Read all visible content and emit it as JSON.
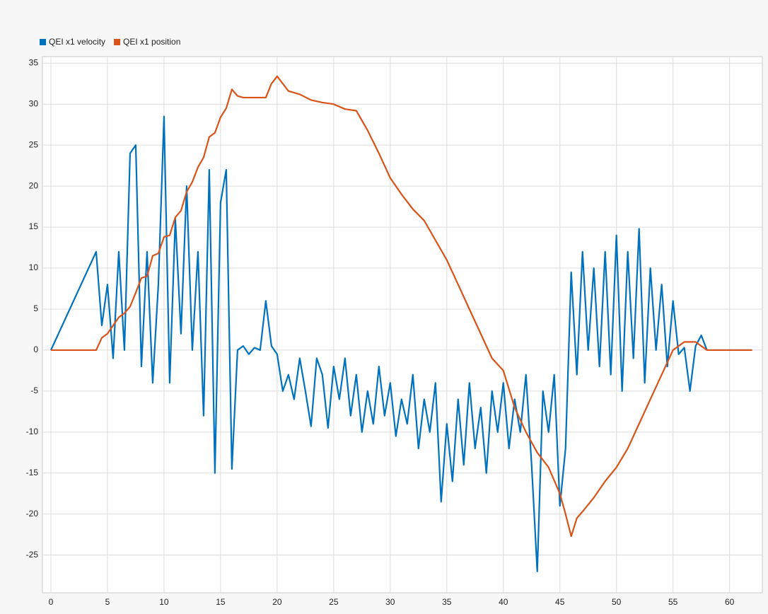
{
  "chart_data": {
    "type": "line",
    "xlim": [
      -0.75,
      62.9
    ],
    "xticks": [
      0,
      5,
      10,
      15,
      20,
      25,
      30,
      35,
      40,
      45,
      50,
      55,
      60
    ],
    "ylim": [
      -29.6,
      35.8
    ],
    "yticks": [
      -25,
      -20,
      -15,
      -10,
      -5,
      0,
      5,
      10,
      15,
      20,
      25,
      30,
      35
    ],
    "grid": true,
    "legend": "top-left",
    "series": [
      {
        "name": "QEI x1 velocity",
        "color": "#0072bd",
        "x": [
          0,
          4,
          4.5,
          5,
          5.5,
          6,
          6.5,
          7,
          7.5,
          8,
          8.5,
          9,
          9.5,
          10,
          10.5,
          11,
          11.5,
          12,
          12.5,
          13,
          13.5,
          14,
          14.5,
          15,
          15.5,
          16,
          16.5,
          17,
          17.5,
          18,
          18.5,
          19,
          19.5,
          20,
          20.5,
          21,
          21.5,
          22,
          22.5,
          23,
          23.5,
          24,
          24.5,
          25,
          25.5,
          26,
          26.5,
          27,
          27.5,
          28,
          28.5,
          29,
          29.5,
          30,
          30.5,
          31,
          31.5,
          32,
          32.5,
          33,
          33.5,
          34,
          34.5,
          35,
          35.5,
          36,
          36.5,
          37,
          37.5,
          38,
          38.5,
          39,
          39.5,
          40,
          40.5,
          41,
          41.5,
          42,
          42.5,
          43,
          43.5,
          44,
          44.5,
          45,
          45.5,
          46,
          46.5,
          47,
          47.5,
          48,
          48.5,
          49,
          49.5,
          50,
          50.5,
          51,
          51.5,
          52,
          52.5,
          53,
          53.5,
          54,
          54.5,
          55,
          55.5,
          56,
          56.5,
          57,
          57.5,
          58,
          62
        ],
        "values": [
          0,
          12,
          3,
          8,
          -1,
          12,
          0,
          24,
          25,
          -2,
          12,
          -4,
          8,
          28.5,
          -4,
          16,
          2,
          20,
          0,
          12,
          -8,
          22,
          -15,
          18,
          22,
          -14.5,
          0,
          0.5,
          -0.5,
          0.3,
          0,
          6,
          0.5,
          -0.5,
          -5,
          -3,
          -6,
          -1,
          -5,
          -9.3,
          -1,
          -3,
          -9.5,
          -2,
          -6,
          -1,
          -8,
          -3,
          -10,
          -5,
          -9,
          -2,
          -8,
          -4,
          -10.5,
          -6,
          -9,
          -3,
          -12,
          -6,
          -10,
          -4,
          -18.5,
          -9,
          -16,
          -6,
          -14,
          -4,
          -12,
          -7,
          -15,
          -5,
          -10,
          -4,
          -12,
          -6,
          -10,
          -3,
          -14,
          -27,
          -5,
          -10,
          -3,
          -19,
          -12,
          9.5,
          -3,
          12,
          0,
          10,
          -2,
          12,
          -3,
          14,
          -5,
          12,
          -1,
          14.8,
          -4,
          10,
          0,
          8,
          -2,
          6,
          -0.5,
          0.3,
          -5,
          0.5,
          1.8,
          0,
          0
        ]
      },
      {
        "name": "QEI x1 position",
        "color": "#d95319",
        "x": [
          0,
          4,
          4.5,
          5,
          5.5,
          6,
          6.5,
          7,
          7.5,
          8,
          8.5,
          9,
          9.5,
          10,
          10.5,
          11,
          11.5,
          12,
          12.5,
          13,
          13.5,
          14,
          14.5,
          15,
          15.5,
          16,
          16.5,
          17,
          18,
          19,
          19.5,
          20,
          20.5,
          21,
          22,
          23,
          24,
          25,
          26,
          27,
          28,
          29,
          30,
          31,
          32,
          33,
          34,
          35,
          36,
          37,
          38,
          39,
          40,
          41,
          42,
          43,
          44,
          45,
          45.5,
          46,
          46.5,
          47,
          48,
          49,
          50,
          51,
          52,
          53,
          54,
          55,
          56,
          57,
          58,
          62
        ],
        "values": [
          0,
          0,
          1.5,
          2,
          3,
          4,
          4.5,
          5.3,
          7,
          8.8,
          9,
          11.5,
          11.8,
          13.8,
          14,
          16.2,
          17,
          19.3,
          20.5,
          22.3,
          23.5,
          26,
          26.5,
          28.4,
          29.5,
          31.8,
          31,
          30.8,
          30.8,
          30.8,
          32.5,
          33.4,
          32.5,
          31.6,
          31.2,
          30.5,
          30.2,
          30,
          29.4,
          29.2,
          26.8,
          24,
          21,
          19,
          17.2,
          15.8,
          13.4,
          11,
          8,
          5,
          2,
          -1,
          -2.5,
          -7,
          -10,
          -12.5,
          -14.3,
          -17.5,
          -20,
          -22.7,
          -20.5,
          -19.7,
          -18,
          -16,
          -14.3,
          -12,
          -9,
          -6,
          -3,
          0,
          1,
          1,
          0,
          0
        ]
      }
    ]
  }
}
